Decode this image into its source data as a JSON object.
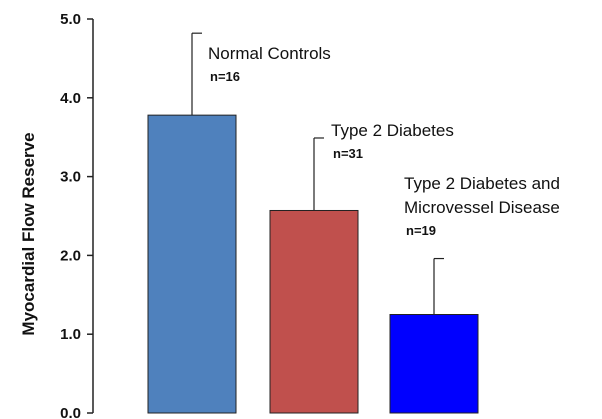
{
  "chart_data": {
    "type": "bar",
    "ylabel": "Myocardial Flow Reserve",
    "xlabel": "",
    "ylim": [
      0,
      5
    ],
    "yticks": [
      "0.0",
      "1.0",
      "2.0",
      "3.0",
      "4.0",
      "5.0"
    ],
    "grid": false,
    "legend": "none",
    "categories": [
      {
        "label_lines": [
          "Normal Controls"
        ],
        "n_label": "n=16"
      },
      {
        "label_lines": [
          "Type 2 Diabetes"
        ],
        "n_label": "n=31"
      },
      {
        "label_lines": [
          "Type 2 Diabetes and",
          "Microvessel Disease"
        ],
        "n_label": "n=19"
      }
    ],
    "values": [
      3.78,
      2.57,
      1.25
    ],
    "error_upper": [
      4.82,
      3.49,
      1.96
    ],
    "colors": [
      "#4f81bd",
      "#c0504d",
      "#0000ff"
    ],
    "bar_edge_color": "#222222",
    "axis_color": "#222222"
  }
}
